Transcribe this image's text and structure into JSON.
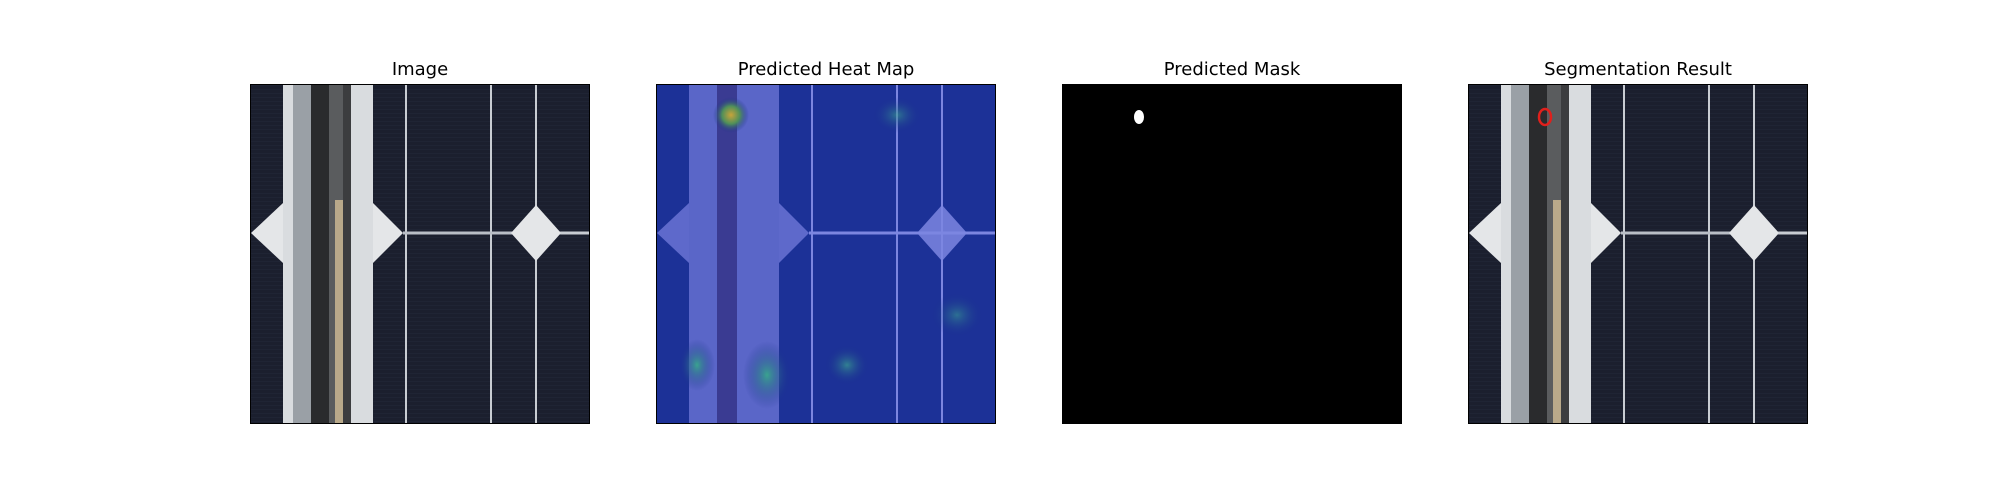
{
  "panels": [
    {
      "title": "Image",
      "kind": "photo"
    },
    {
      "title": "Predicted Heat Map",
      "kind": "heatmap"
    },
    {
      "title": "Predicted Mask",
      "kind": "mask"
    },
    {
      "title": "Segmentation Result",
      "kind": "overlay"
    }
  ],
  "colors": {
    "cell_background": "#1b1f2e",
    "heatmap_base": "#1a2a8c",
    "mask_background": "#000000",
    "mask_defect": "#ffffff",
    "overlay_outline": "#e0201c"
  }
}
